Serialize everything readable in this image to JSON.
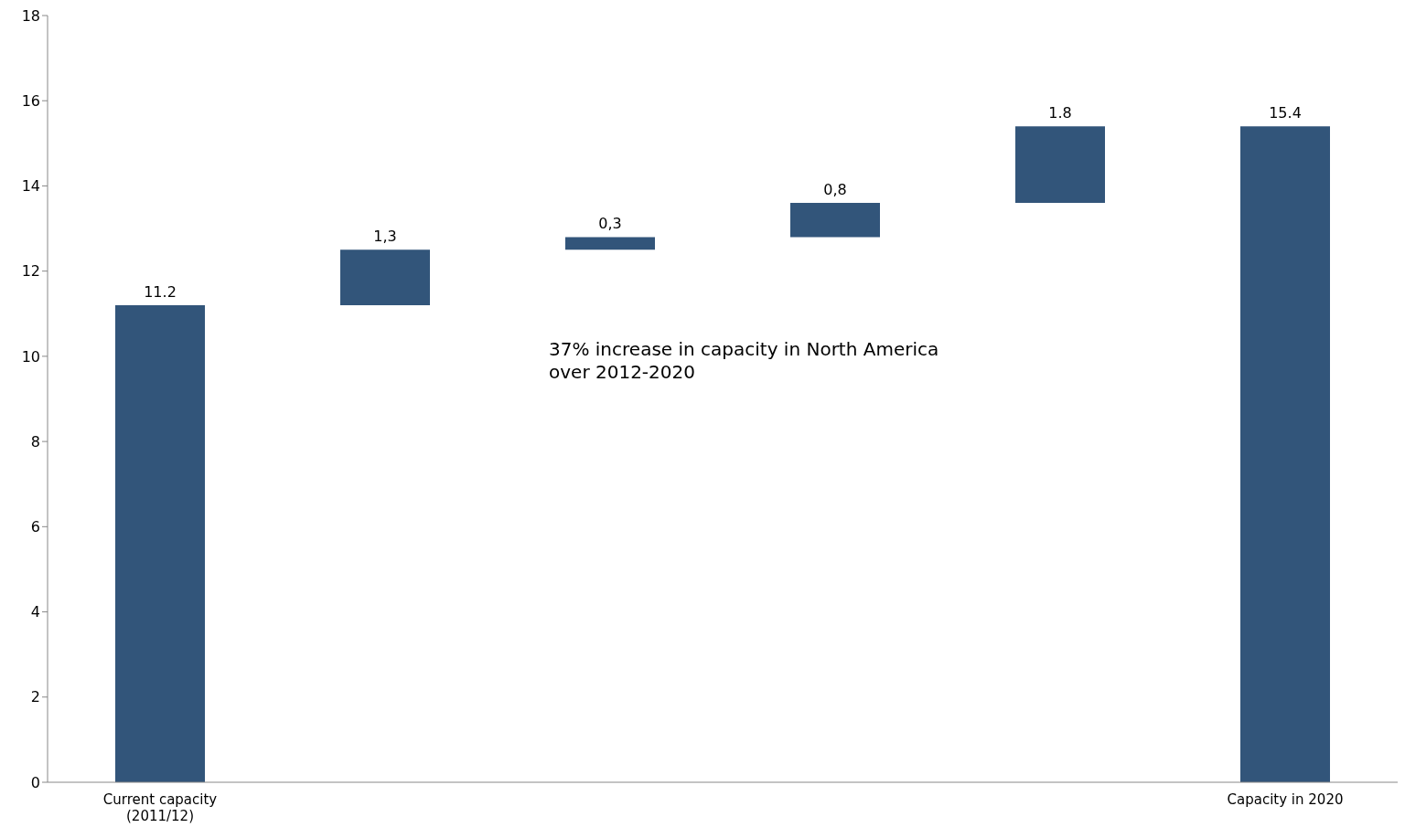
{
  "chart_data": {
    "type": "bar",
    "categories": [
      "Current capacity (2011/12)",
      null,
      null,
      null,
      null,
      "Capacity in 2020"
    ],
    "values": [
      11.2,
      1.3,
      0.3,
      0.8,
      1.8,
      15.4
    ],
    "base": [
      0,
      11.2,
      12.5,
      12.8,
      13.6,
      0
    ],
    "value_labels": [
      "11.2",
      "1,3",
      "0,3",
      "0,8",
      "1.8",
      "15.4"
    ],
    "color": "#32557a",
    "ylim": [
      0,
      18
    ],
    "yticks": [
      0,
      2,
      4,
      6,
      8,
      10,
      12,
      14,
      16,
      18
    ],
    "grid": false,
    "legend": false,
    "annotations": [
      "37% increase in capacity in North America over 2012-2020"
    ]
  }
}
